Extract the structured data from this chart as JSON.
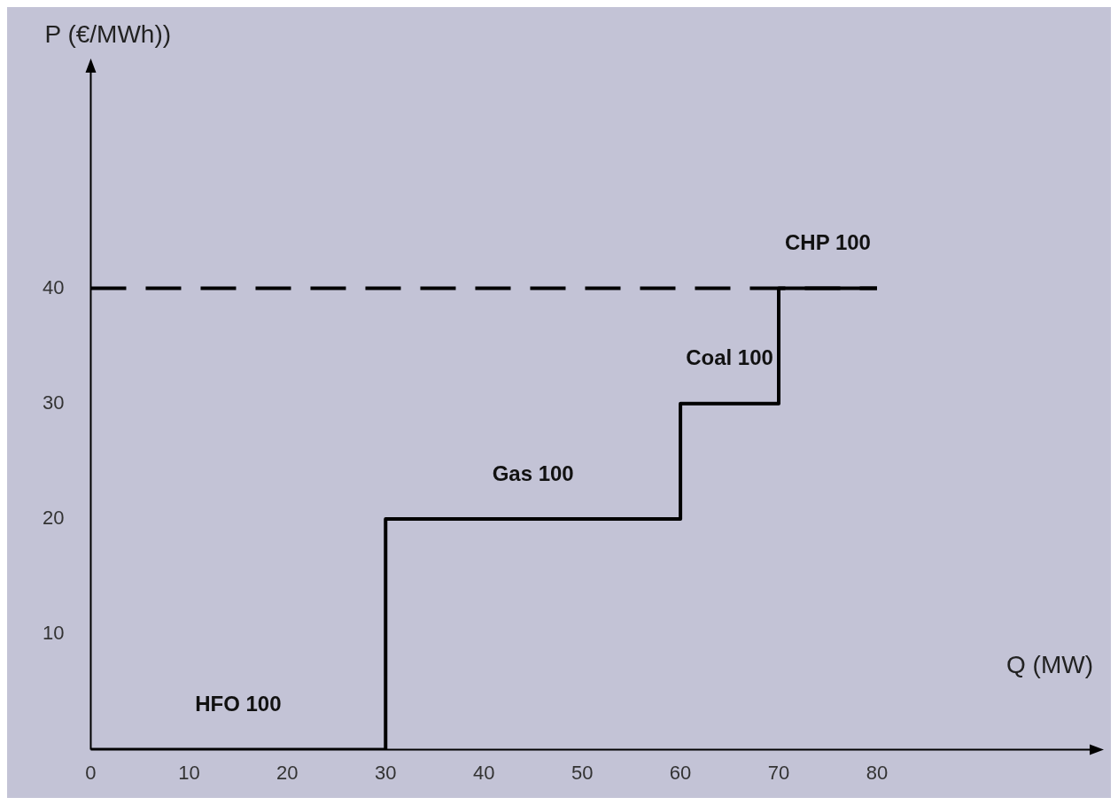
{
  "chart_data": {
    "type": "step",
    "xlabel": "Q (MW)",
    "ylabel": "P (€/MWh))",
    "x": [
      0,
      30,
      60,
      70,
      80
    ],
    "series": [
      {
        "color": "#000000",
        "values": [
          0,
          20,
          30,
          40,
          40
        ]
      }
    ],
    "xlim": [
      0,
      102
    ],
    "ylim": [
      0,
      59
    ],
    "xticks": [
      0,
      10,
      20,
      30,
      40,
      50,
      60,
      70,
      80
    ],
    "yticks": [
      10,
      20,
      30,
      40
    ],
    "ref_lines": [
      {
        "axis": "y",
        "value": 40,
        "color": "#000000",
        "line_style": "dashed"
      }
    ],
    "annotations": [
      "HFO 100",
      "Gas 100",
      "Coal 100",
      "CHP 100"
    ],
    "grid": false,
    "legend": false,
    "marker": "none"
  }
}
